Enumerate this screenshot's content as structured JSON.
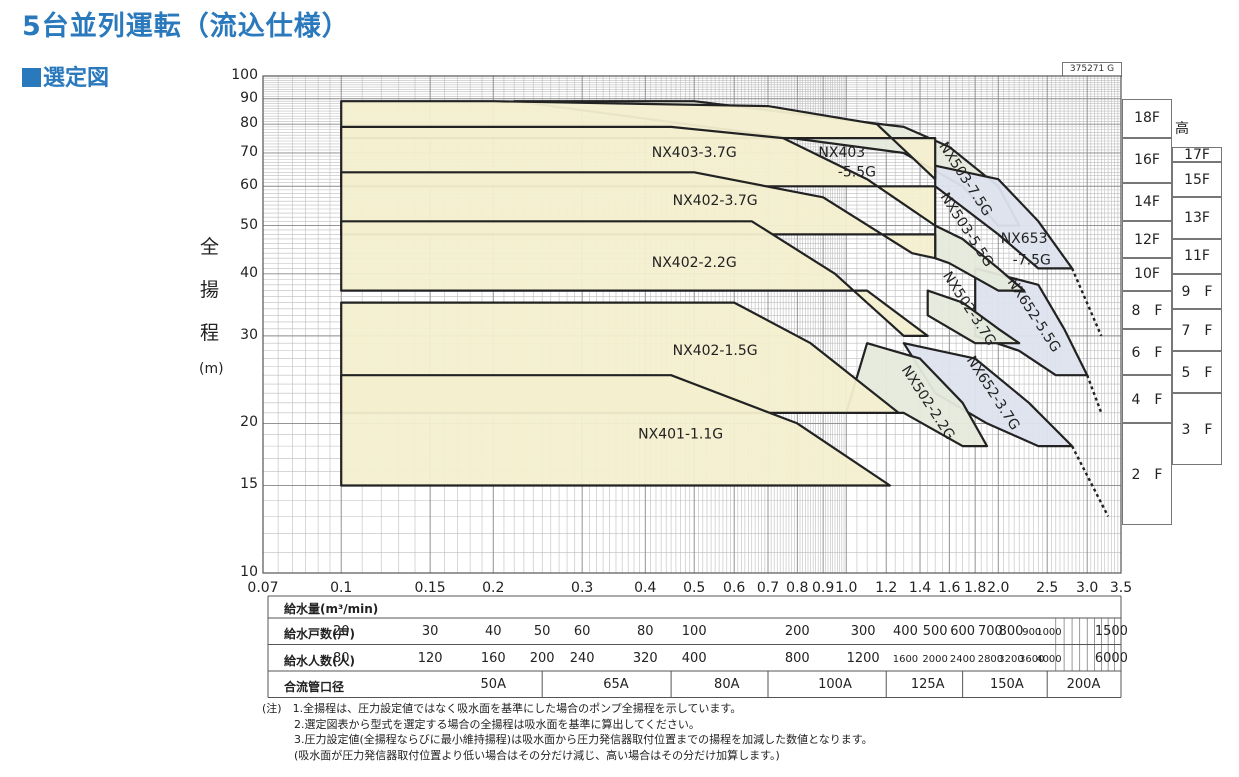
{
  "title": "5台並列運転（流込仕様）",
  "subtitle": "選定図",
  "code": "375271 G",
  "y_axis": {
    "chars": [
      "全",
      "揚",
      "程"
    ],
    "unit": "(m)"
  },
  "chart_data": {
    "type": "area",
    "x_scale": "log",
    "y_scale": "log",
    "xlim": [
      0.07,
      3.5
    ],
    "ylim": [
      10,
      100
    ],
    "xlabel": "給水量(m³/min)",
    "ylabel": "全揚程(m)",
    "x_ticks": [
      "0.07",
      "0.1",
      "0.15",
      "0.2",
      "0.3",
      "0.4",
      "0.5",
      "0.6",
      "0.7",
      "0.8",
      "0.9",
      "1.0",
      "1.2",
      "1.4",
      "1.6",
      "1.8",
      "2.0",
      "2.5",
      "3.0",
      "3.5"
    ],
    "y_ticks": [
      "10",
      "15",
      "20",
      "30",
      "40",
      "50",
      "60",
      "70",
      "80",
      "90",
      "100"
    ],
    "grid": true,
    "series": [
      {
        "name": "NX401-1.1G",
        "points": [
          [
            0.1,
            15
          ],
          [
            1.22,
            15
          ],
          [
            0.8,
            20
          ],
          [
            0.45,
            25
          ],
          [
            0.1,
            25
          ]
        ]
      },
      {
        "name": "NX402-1.5G",
        "points": [
          [
            0.1,
            35
          ],
          [
            0.6,
            35
          ],
          [
            0.85,
            29
          ],
          [
            1.27,
            21
          ],
          [
            0.8,
            21
          ],
          [
            0.1,
            21
          ]
        ]
      },
      {
        "name": "NX402-2.2G",
        "points": [
          [
            0.1,
            51
          ],
          [
            0.65,
            51
          ],
          [
            0.95,
            40
          ],
          [
            1.3,
            30
          ],
          [
            1.45,
            30
          ],
          [
            1.1,
            37
          ],
          [
            0.1,
            37
          ]
        ]
      },
      {
        "name": "NX402-3.7G",
        "points": [
          [
            0.1,
            64
          ],
          [
            0.5,
            64
          ],
          [
            0.9,
            57
          ],
          [
            1.35,
            44
          ],
          [
            1.5,
            43
          ],
          [
            1.5,
            48
          ],
          [
            0.1,
            48
          ]
        ]
      },
      {
        "name": "NX403-3.7G",
        "points": [
          [
            0.1,
            79
          ],
          [
            0.45,
            79
          ],
          [
            0.75,
            75
          ],
          [
            1.1,
            62
          ],
          [
            1.5,
            50
          ],
          [
            1.5,
            60
          ],
          [
            0.1,
            60
          ]
        ]
      },
      {
        "name": "NX403-5.5G",
        "points": [
          [
            0.1,
            89
          ],
          [
            0.2,
            89
          ],
          [
            0.7,
            87
          ],
          [
            1.15,
            80
          ],
          [
            1.5,
            62
          ],
          [
            1.5,
            75
          ],
          [
            0.1,
            75
          ]
        ]
      },
      {
        "name": "NX503-7.5G",
        "points": [
          [
            0.22,
            89
          ],
          [
            0.5,
            89
          ],
          [
            1.3,
            79
          ],
          [
            1.6,
            72
          ],
          [
            2.0,
            60
          ],
          [
            2.2,
            50
          ],
          [
            2.0,
            50
          ],
          [
            1.7,
            60
          ],
          [
            1.3,
            70
          ]
        ]
      },
      {
        "name": "NX503-5.5G",
        "points": [
          [
            1.5,
            50
          ],
          [
            1.7,
            47
          ],
          [
            2.0,
            41
          ],
          [
            2.25,
            37
          ],
          [
            2.0,
            37
          ],
          [
            1.6,
            42
          ],
          [
            1.5,
            43
          ]
        ]
      },
      {
        "name": "NX653-7.5G",
        "points": [
          [
            1.5,
            66
          ],
          [
            2.0,
            62
          ],
          [
            2.4,
            51
          ],
          [
            2.8,
            41
          ],
          [
            2.4,
            41
          ],
          [
            2.0,
            48
          ],
          [
            1.5,
            60
          ]
        ]
      },
      {
        "name": "NX502-3.7G",
        "points": [
          [
            1.45,
            37
          ],
          [
            1.7,
            35
          ],
          [
            2.0,
            31
          ],
          [
            2.2,
            29
          ],
          [
            1.8,
            29
          ],
          [
            1.45,
            33
          ]
        ]
      },
      {
        "name": "NX652-5.5G",
        "points": [
          [
            1.8,
            41
          ],
          [
            2.4,
            38
          ],
          [
            2.7,
            31
          ],
          [
            3.0,
            25
          ],
          [
            2.6,
            25
          ],
          [
            2.2,
            28
          ],
          [
            1.8,
            30
          ]
        ]
      },
      {
        "name": "NX502-2.2G",
        "points": [
          [
            1.1,
            29
          ],
          [
            1.4,
            27
          ],
          [
            1.7,
            22
          ],
          [
            1.9,
            18
          ],
          [
            1.7,
            18
          ],
          [
            1.3,
            21
          ],
          [
            1.0,
            21
          ]
        ]
      },
      {
        "name": "NX652-3.7G",
        "points": [
          [
            1.3,
            29
          ],
          [
            1.8,
            27
          ],
          [
            2.3,
            22
          ],
          [
            2.8,
            18
          ],
          [
            2.4,
            18
          ],
          [
            1.9,
            20
          ],
          [
            1.5,
            23
          ]
        ]
      }
    ],
    "dashed_extensions": [
      {
        "points": [
          [
            2.8,
            41
          ],
          [
            3.2,
            30
          ]
        ]
      },
      {
        "points": [
          [
            3.0,
            25
          ],
          [
            3.2,
            21
          ]
        ]
      },
      {
        "points": [
          [
            2.8,
            18
          ],
          [
            3.3,
            13
          ]
        ]
      }
    ]
  },
  "curve_labels": [
    {
      "text": "NX403-3.7G",
      "x": 0.5,
      "y": 70,
      "rot": 0
    },
    {
      "text": "NX403",
      "x": 0.98,
      "y": 70,
      "rot": 0
    },
    {
      "text": "-5.5G",
      "x": 1.05,
      "y": 64,
      "rot": 0
    },
    {
      "text": "NX402-3.7G",
      "x": 0.55,
      "y": 56,
      "rot": 0
    },
    {
      "text": "NX402-2.2G",
      "x": 0.5,
      "y": 42,
      "rot": 0
    },
    {
      "text": "NX402-1.5G",
      "x": 0.55,
      "y": 28,
      "rot": 0
    },
    {
      "text": "NX401-1.1G",
      "x": 0.47,
      "y": 19,
      "rot": 0
    },
    {
      "text": "NX503-7.5G",
      "x": 1.72,
      "y": 62,
      "rot": 57
    },
    {
      "text": "NX503-5.5G",
      "x": 1.73,
      "y": 49,
      "rot": 57
    },
    {
      "text": "NX653",
      "x": 2.25,
      "y": 47,
      "rot": 0
    },
    {
      "text": "-7.5G",
      "x": 2.33,
      "y": 42.5,
      "rot": 0
    },
    {
      "text": "NX502-3.7G",
      "x": 1.75,
      "y": 34,
      "rot": 57
    },
    {
      "text": "NX652-5.5G",
      "x": 2.35,
      "y": 33,
      "rot": 57
    },
    {
      "text": "NX502-2.2G",
      "x": 1.45,
      "y": 22,
      "rot": 57
    },
    {
      "text": "NX652-3.7G",
      "x": 1.95,
      "y": 23,
      "rot": 57
    }
  ],
  "floors_header": "階高",
  "floors_left": [
    {
      "label": "18F",
      "top": 90,
      "bottom": 75
    },
    {
      "label": "16F",
      "top": 75,
      "bottom": 61
    },
    {
      "label": "14F",
      "top": 61,
      "bottom": 51
    },
    {
      "label": "12F",
      "top": 51,
      "bottom": 43
    },
    {
      "label": "10F",
      "top": 43,
      "bottom": 37
    },
    {
      "label": "8　F",
      "top": 37,
      "bottom": 31
    },
    {
      "label": "6　F",
      "top": 31,
      "bottom": 25
    },
    {
      "label": "4　F",
      "top": 25,
      "bottom": 20
    },
    {
      "label": "2　F",
      "top": 20,
      "bottom": 12.5
    }
  ],
  "floors_right": [
    {
      "label": "17F",
      "top": 72,
      "bottom": 67
    },
    {
      "label": "15F",
      "top": 67,
      "bottom": 57
    },
    {
      "label": "13F",
      "top": 57,
      "bottom": 47
    },
    {
      "label": "11F",
      "top": 47,
      "bottom": 40
    },
    {
      "label": "9　F",
      "top": 40,
      "bottom": 34
    },
    {
      "label": "7　F",
      "top": 34,
      "bottom": 28
    },
    {
      "label": "5　F",
      "top": 28,
      "bottom": 23
    },
    {
      "label": "3　F",
      "top": 23,
      "bottom": 16.5
    }
  ],
  "table": {
    "flow_label": "給水量(m³/min)",
    "rows": [
      {
        "label": "給水戸数(戸)",
        "cells": [
          {
            "t": "20",
            "x": 0.1
          },
          {
            "t": "30",
            "x": 0.15
          },
          {
            "t": "40",
            "x": 0.2
          },
          {
            "t": "50",
            "x": 0.25
          },
          {
            "t": "60",
            "x": 0.3
          },
          {
            "t": "80",
            "x": 0.4
          },
          {
            "t": "100",
            "x": 0.5
          },
          {
            "t": "200",
            "x": 0.8
          },
          {
            "t": "300",
            "x": 1.08
          },
          {
            "t": "400",
            "x": 1.31
          },
          {
            "t": "500",
            "x": 1.5
          },
          {
            "t": "600",
            "x": 1.7
          },
          {
            "t": "700",
            "x": 1.93
          },
          {
            "t": "800",
            "x": 2.12
          },
          {
            "t": "900",
            "x": 2.33,
            "sm": true
          },
          {
            "t": "1000",
            "x": 2.52,
            "sm": true
          },
          {
            "t": "1500",
            "x": 3.35
          }
        ]
      },
      {
        "label": "給水人数(人)",
        "cells": [
          {
            "t": "80",
            "x": 0.1
          },
          {
            "t": "120",
            "x": 0.15
          },
          {
            "t": "160",
            "x": 0.2
          },
          {
            "t": "200",
            "x": 0.25
          },
          {
            "t": "240",
            "x": 0.3
          },
          {
            "t": "320",
            "x": 0.4
          },
          {
            "t": "400",
            "x": 0.5
          },
          {
            "t": "800",
            "x": 0.8
          },
          {
            "t": "1200",
            "x": 1.08
          },
          {
            "t": "1600",
            "x": 1.31,
            "sm": true
          },
          {
            "t": "2000",
            "x": 1.5,
            "sm": true
          },
          {
            "t": "2400",
            "x": 1.7,
            "sm": true
          },
          {
            "t": "2800",
            "x": 1.93,
            "sm": true
          },
          {
            "t": "3200",
            "x": 2.12,
            "sm": true
          },
          {
            "t": "3600",
            "x": 2.33,
            "sm": true
          },
          {
            "t": "4000",
            "x": 2.52,
            "sm": true
          },
          {
            "t": "6000",
            "x": 3.35
          }
        ]
      },
      {
        "label": "合流管口径",
        "cells": [
          {
            "t": "50A",
            "x": 0.2
          },
          {
            "t": "65A",
            "x": 0.35
          },
          {
            "t": "80A",
            "x": 0.58
          },
          {
            "t": "100A",
            "x": 0.95
          },
          {
            "t": "125A",
            "x": 1.45
          },
          {
            "t": "150A",
            "x": 2.08
          },
          {
            "t": "200A",
            "x": 2.95
          }
        ]
      }
    ]
  },
  "notes": [
    "(注)　1.全揚程は、圧力設定値ではなく吸水面を基準にした場合のポンプ全揚程を示しています。",
    "2.選定図表から型式を選定する場合の全揚程は吸水面を基準に算出してください。",
    "3.圧力設定値(全揚程ならびに最小維持揚程)は吸水面から圧力発信器取付位置までの揚程を加減した数値となります。",
    "(吸水面が圧力発信器取付位置より低い場合はその分だけ減じ、高い場合はその分だけ加算します。)"
  ],
  "colors": {
    "title": "#2b79bd",
    "fill_main": "#f3efcf",
    "fill_alt": "#e5eadc",
    "fill_blue": "#dee3ee",
    "grid": "#bdbdbd",
    "curve": "#222222"
  }
}
